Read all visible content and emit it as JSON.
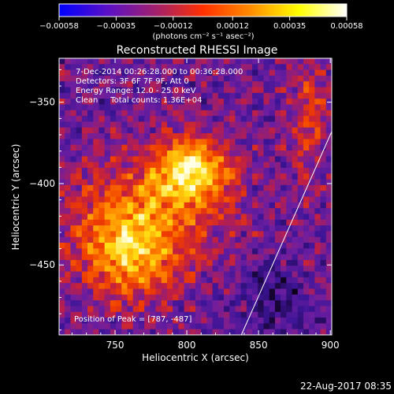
{
  "chart_data": {
    "type": "heatmap",
    "title": "Reconstructed RHESSI Image",
    "xlabel": "Heliocentric X (arcsec)",
    "ylabel": "Heliocentric Y (arcsec)",
    "xlim": [
      711,
      901
    ],
    "ylim": [
      -493,
      -323
    ],
    "xticks": [
      750,
      800,
      850,
      900
    ],
    "xtick_labels": [
      "750",
      "800",
      "850",
      "900"
    ],
    "yticks": [
      -350,
      -400,
      -450
    ],
    "ytick_labels": [
      "−350",
      "−400",
      "−450"
    ],
    "colorbar": {
      "ticks": [
        -0.00058,
        -0.00035,
        -0.00012,
        0.00012,
        0.00035,
        0.00058
      ],
      "tick_labels": [
        "−0.00058",
        "−0.00035",
        "−0.00012",
        "0.00012",
        "0.00035",
        "0.00058"
      ],
      "unit_label": "(photons cm⁻² s⁻¹ asec⁻²)",
      "colors": [
        "#0000ff",
        "#5a10c8",
        "#a0206e",
        "#ff3000",
        "#ff8c00",
        "#ffff00",
        "#ffffff"
      ]
    },
    "peak": {
      "x": 787,
      "y": -487
    },
    "limb_line": [
      [
        838,
        -493
      ],
      [
        901,
        -368
      ]
    ],
    "annotations": {
      "time": "7-Dec-2014 00:26:28.000 to 00:36:28.000",
      "detectors": "Detectors: 3F 6F 7F 9F, Att 0",
      "energy": "Energy Range: 12.0 - 25.0 keV",
      "method": "Clean     Total counts: 1.36E+04",
      "peak_text": "Position of Peak = [787, -487]"
    }
  },
  "footer": {
    "timestamp": "22-Aug-2017 08:35"
  }
}
